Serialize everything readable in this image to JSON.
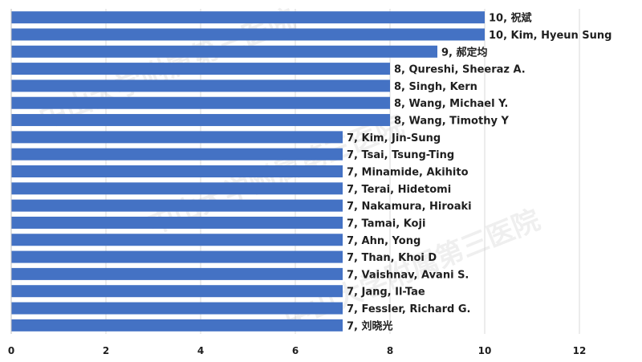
{
  "chart_data": {
    "type": "bar",
    "orientation": "horizontal",
    "title": "",
    "xlabel": "",
    "ylabel": "",
    "xlim": [
      0,
      12
    ],
    "x_ticks": [
      0,
      2,
      4,
      6,
      8,
      10,
      12
    ],
    "grid": "vertical",
    "legend": "none",
    "bar_color": "#4472c4",
    "categories": [
      "祝斌",
      "Kim, Hyeun Sung",
      "郝定均",
      "Qureshi, Sheeraz A.",
      "Singh, Kern",
      "Wang, Michael Y.",
      "Wang, Timothy Y",
      "Kim, Jin-Sung",
      "Tsai, Tsung-Ting",
      "Minamide, Akihito",
      "Terai, Hidetomi",
      "Nakamura, Hiroaki",
      "Tamai, Koji",
      "Ahn, Yong",
      "Than, Khoi D",
      "Vaishnav, Avani S.",
      "Jang, Il-Tae",
      "Fessler, Richard G.",
      "刘晓光"
    ],
    "values": [
      10,
      10,
      9,
      8,
      8,
      8,
      8,
      7,
      7,
      7,
      7,
      7,
      7,
      7,
      7,
      7,
      7,
      7,
      7
    ],
    "data_labels": [
      "10, 祝斌",
      "10, Kim, Hyeun Sung",
      "9, 郝定均",
      "8, Qureshi, Sheeraz A.",
      "8, Singh, Kern",
      "8, Wang, Michael Y.",
      "8, Wang, Timothy Y",
      "7, Kim, Jin-Sung",
      "7, Tsai, Tsung-Ting",
      "7, Minamide, Akihito",
      "7, Terai, Hidetomi",
      "7, Nakamura, Hiroaki",
      "7, Tamai, Koji",
      "7, Ahn, Yong",
      "7, Than, Khoi D",
      "7, Vaishnav, Avani S.",
      "7, Jang, Il-Tae",
      "7, Fessler, Richard G.",
      "7, 刘晓光"
    ]
  },
  "watermark": {
    "text": "中山大学附属第三医院"
  }
}
